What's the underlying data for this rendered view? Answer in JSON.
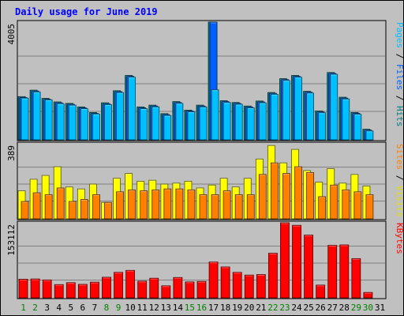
{
  "chart_data": {
    "type": "bar",
    "title": "Daily usage for June 2019",
    "categories": [
      "1",
      "2",
      "3",
      "4",
      "5",
      "6",
      "7",
      "8",
      "9",
      "10",
      "11",
      "12",
      "13",
      "14",
      "15",
      "16",
      "17",
      "18",
      "19",
      "20",
      "21",
      "22",
      "23",
      "24",
      "25",
      "26",
      "27",
      "28",
      "29",
      "30",
      "31"
    ],
    "weekend_days": [
      "1",
      "2",
      "8",
      "9",
      "15",
      "16",
      "22",
      "23",
      "29",
      "30"
    ],
    "grid": true,
    "panels": [
      {
        "id": "top",
        "max_label": "4005",
        "ymax": 4005,
        "side_label_parts": [
          {
            "text": "Pages",
            "color": "#00c0ff"
          },
          {
            "text": " / ",
            "color": "#000000"
          },
          {
            "text": "Files",
            "color": "#0060ff"
          },
          {
            "text": " / ",
            "color": "#000000"
          },
          {
            "text": "Hits",
            "color": "#008080"
          }
        ],
        "series": [
          {
            "name": "Hits",
            "color": "#008080",
            "values": [
              1470,
              1690,
              1410,
              1290,
              1240,
              1120,
              930,
              1260,
              1670,
              2190,
              1120,
              1180,
              890,
              1300,
              1010,
              1180,
              4005,
              1330,
              1270,
              1150,
              1320,
              1610,
              2080,
              2190,
              1650,
              980,
              2290,
              1450,
              930,
              360,
              0
            ]
          },
          {
            "name": "Files",
            "color": "#0060ff",
            "values": [
              1440,
              1660,
              1380,
              1260,
              1210,
              1090,
              900,
              1230,
              1640,
              2160,
              1090,
              1150,
              860,
              1270,
              980,
              1150,
              4005,
              1300,
              1240,
              1120,
              1290,
              1580,
              2050,
              2160,
              1620,
              950,
              2260,
              1420,
              900,
              330,
              0
            ]
          },
          {
            "name": "Pages",
            "color": "#00c0ff",
            "values": [
              1420,
              1630,
              1360,
              1230,
              1180,
              1060,
              880,
              1200,
              1610,
              2130,
              1060,
              1120,
              830,
              1240,
              950,
              1120,
              1700,
              1270,
              1210,
              1090,
              1260,
              1550,
              2020,
              2130,
              1590,
              920,
              2230,
              1390,
              870,
              300,
              0
            ]
          }
        ]
      },
      {
        "id": "middle",
        "max_label": "389",
        "ymax": 389,
        "side_label_parts": [
          {
            "text": "Sites",
            "color": "#ff8000"
          },
          {
            "text": " / ",
            "color": "#000000"
          },
          {
            "text": "Visits",
            "color": "#e0e000"
          }
        ],
        "series": [
          {
            "name": "Visits",
            "color": "#ffff00",
            "values": [
              145,
              205,
              225,
              270,
              165,
              155,
              180,
              85,
              210,
              235,
              195,
              200,
              180,
              185,
              195,
              160,
              175,
              210,
              165,
              210,
              310,
              380,
              290,
              360,
              250,
              190,
              260,
              185,
              230,
              170,
              0
            ]
          },
          {
            "name": "Sites",
            "color": "#ff8000",
            "values": [
              90,
              135,
              125,
              160,
              90,
              100,
              125,
              85,
              140,
              150,
              145,
              150,
              155,
              155,
              150,
              125,
              125,
              145,
              125,
              125,
              230,
              290,
              235,
              270,
              240,
              115,
              175,
              150,
              140,
              125,
              0
            ]
          }
        ]
      },
      {
        "id": "bottom",
        "max_label": "153112",
        "ymax": 153112,
        "side_label_parts": [
          {
            "text": "KBytes",
            "color": "#ff0000"
          }
        ],
        "series": [
          {
            "name": "KBytes",
            "color": "#ff0000",
            "values": [
              38000,
              38500,
              36500,
              27000,
              31000,
              27500,
              32000,
              42000,
              52000,
              56000,
              34000,
              40000,
              24500,
              41500,
              32500,
              33500,
              73000,
              63000,
              52000,
              46500,
              47500,
              91000,
              153112,
              148000,
              128000,
              26000,
              107000,
              108000,
              80000,
              11000,
              0
            ]
          }
        ]
      }
    ]
  }
}
